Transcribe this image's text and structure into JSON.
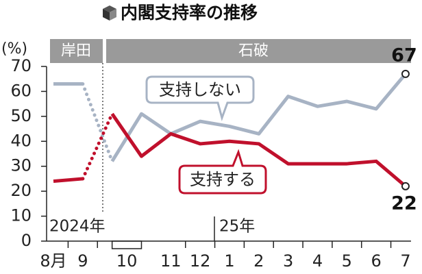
{
  "chart_data": {
    "type": "line",
    "title": "内閣支持率の推移",
    "y_unit": "(%)",
    "categories": [
      "8月",
      "9",
      "10",
      null,
      "11",
      "12",
      "1",
      "2",
      "3",
      "4",
      "5",
      "6",
      "7"
    ],
    "series": [
      {
        "name": "支持しない",
        "color": "#a7b3c4",
        "values": [
          63,
          63,
          32,
          51,
          43,
          48,
          46,
          43,
          58,
          54,
          56,
          53,
          67
        ]
      },
      {
        "name": "支持する",
        "color": "#c0102c",
        "values": [
          24,
          25,
          51,
          34,
          43,
          39,
          40,
          39,
          31,
          31,
          31,
          32,
          22
        ]
      }
    ],
    "ylim": [
      0,
      70
    ],
    "yticks": [
      0,
      10,
      20,
      30,
      40,
      50,
      60,
      70
    ],
    "eras": [
      "岸田",
      "石破"
    ],
    "years": [
      "2024年",
      "25年"
    ]
  }
}
